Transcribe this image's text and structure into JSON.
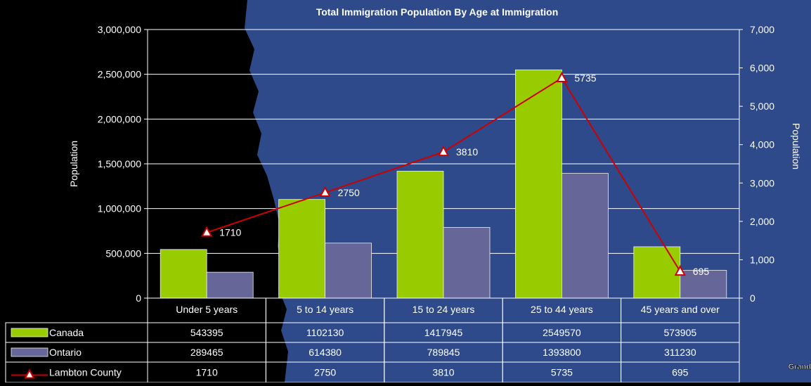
{
  "colors": {
    "background_dark": "#000000",
    "background_blue": "#2e4a8b",
    "canada": "#99cc00",
    "ontario": "#666699",
    "lambton": "#cc0000",
    "marker_fill": "#ffffff",
    "text": "#ffffff",
    "grid": "#ffffff"
  },
  "footer": {
    "watermark": "Grand"
  },
  "chart_data": {
    "type": "bar",
    "title": "Total Immigration Population By Age at Immigration",
    "ylabel": "Population",
    "y2label": "Population",
    "ylim": [
      0,
      3000000
    ],
    "y2lim": [
      0,
      7000
    ],
    "y_ticks": [
      "0",
      "500,000",
      "1,000,000",
      "1,500,000",
      "2,000,000",
      "2,500,000",
      "3,000,000"
    ],
    "y2_ticks": [
      "0",
      "1,000",
      "2,000",
      "3,000",
      "4,000",
      "5,000",
      "6,000",
      "7,000"
    ],
    "grid": true,
    "legend": "data-table-left",
    "categories": [
      "Under 5 years",
      "5 to 14 years",
      "15 to 24 years",
      "25 to 44 years",
      "45 years and over"
    ],
    "series": [
      {
        "name": "Canada",
        "type": "bar",
        "axis": "left",
        "values": [
          543395,
          1102130,
          1417945,
          2549570,
          573905
        ]
      },
      {
        "name": "Ontario",
        "type": "bar",
        "axis": "left",
        "values": [
          289465,
          614380,
          789845,
          1393800,
          311230
        ]
      },
      {
        "name": "Lambton County",
        "type": "line",
        "axis": "right",
        "values": [
          1710,
          2750,
          3810,
          5735,
          695
        ]
      }
    ],
    "data_labels": [
      "1710",
      "2750",
      "3810",
      "5735",
      "695"
    ],
    "table_rows": [
      [
        "543395",
        "1102130",
        "1417945",
        "2549570",
        "573905"
      ],
      [
        "289465",
        "614380",
        "789845",
        "1393800",
        "311230"
      ],
      [
        "1710",
        "2750",
        "3810",
        "5735",
        "695"
      ]
    ]
  }
}
